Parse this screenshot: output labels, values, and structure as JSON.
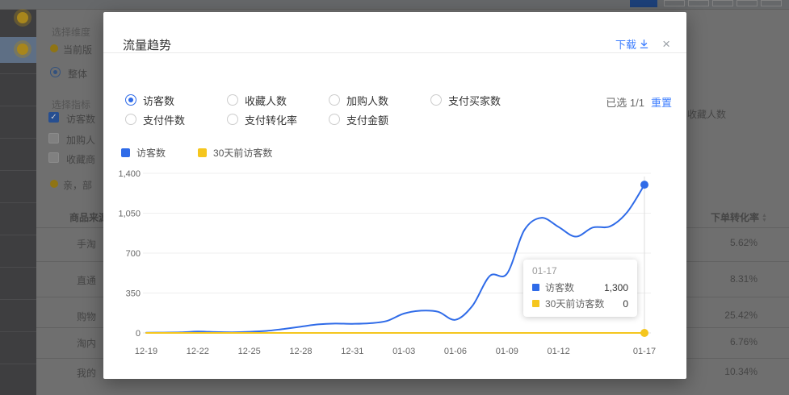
{
  "colors": {
    "series_blue": "#2F6BE8",
    "series_yellow": "#F5C61E",
    "link_blue": "#3D7EFF",
    "modal_bg": "#FFFFFF",
    "dim_overlay": "#6F6F6F"
  },
  "background": {
    "filter": {
      "dimension_label": "选择维度",
      "current_version": "当前版",
      "overall": "整体",
      "metric_label": "选择指标",
      "metrics": [
        "访客数",
        "加购人",
        "收藏商"
      ],
      "notice": "亲，部"
    },
    "table": {
      "source_header": "商品来源",
      "rows": [
        "手淘",
        "直通",
        "购物",
        "淘内",
        "我的"
      ],
      "conv_header": "下单转化率",
      "conv_values": [
        "5.62%",
        "8.31%",
        "25.42%",
        "6.76%",
        "10.34%"
      ]
    },
    "fav_header": "收藏人数"
  },
  "modal": {
    "title": "流量趋势",
    "download_label": "下载",
    "close_glyph": "×",
    "metric_options": [
      {
        "label": "访客数",
        "selected": true
      },
      {
        "label": "收藏人数",
        "selected": false
      },
      {
        "label": "加购人数",
        "selected": false
      },
      {
        "label": "支付买家数",
        "selected": false
      },
      {
        "label": "支付件数",
        "selected": false
      },
      {
        "label": "支付转化率",
        "selected": false
      },
      {
        "label": "支付金额",
        "selected": false
      }
    ],
    "selected_info": "已选 1/1",
    "reset_label": "重置",
    "legend": [
      {
        "label": "访客数",
        "color": "#2F6BE8"
      },
      {
        "label": "30天前访客数",
        "color": "#F5C61E"
      }
    ],
    "tooltip": {
      "date": "01-17",
      "rows": [
        {
          "label": "访客数",
          "value": "1,300",
          "color": "#2F6BE8"
        },
        {
          "label": "30天前访客数",
          "value": "0",
          "color": "#F5C61E"
        }
      ]
    }
  },
  "chart_data": {
    "type": "line",
    "title": "流量趋势",
    "x": [
      "12-19",
      "12-20",
      "12-21",
      "12-22",
      "12-23",
      "12-24",
      "12-25",
      "12-26",
      "12-27",
      "12-28",
      "12-29",
      "12-30",
      "12-31",
      "01-01",
      "01-02",
      "01-03",
      "01-04",
      "01-05",
      "01-06",
      "01-07",
      "01-08",
      "01-09",
      "01-10",
      "01-11",
      "01-12",
      "01-13",
      "01-14",
      "01-15",
      "01-16",
      "01-17"
    ],
    "xtick_indices": [
      0,
      3,
      6,
      9,
      12,
      15,
      18,
      21,
      24,
      29
    ],
    "yticks": [
      0,
      350,
      700,
      1050,
      1400
    ],
    "ylim": [
      0,
      1400
    ],
    "grid": true,
    "legend_position": "top-left",
    "series": [
      {
        "name": "访客数",
        "color": "#2F6BE8",
        "endpoint_dot": true,
        "values": [
          2,
          3,
          5,
          12,
          8,
          6,
          10,
          18,
          35,
          55,
          75,
          82,
          80,
          85,
          105,
          170,
          195,
          185,
          115,
          240,
          500,
          520,
          900,
          1010,
          930,
          845,
          925,
          935,
          1060,
          1300
        ]
      },
      {
        "name": "30天前访客数",
        "color": "#F5C61E",
        "endpoint_dot": true,
        "values": [
          0,
          0,
          0,
          0,
          0,
          0,
          0,
          0,
          0,
          0,
          0,
          0,
          0,
          0,
          0,
          0,
          0,
          0,
          0,
          0,
          0,
          0,
          0,
          0,
          0,
          0,
          0,
          0,
          0,
          0
        ]
      }
    ],
    "highlighted_point": {
      "x": "01-17",
      "访客数": 1300,
      "30天前访客数": 0
    }
  }
}
